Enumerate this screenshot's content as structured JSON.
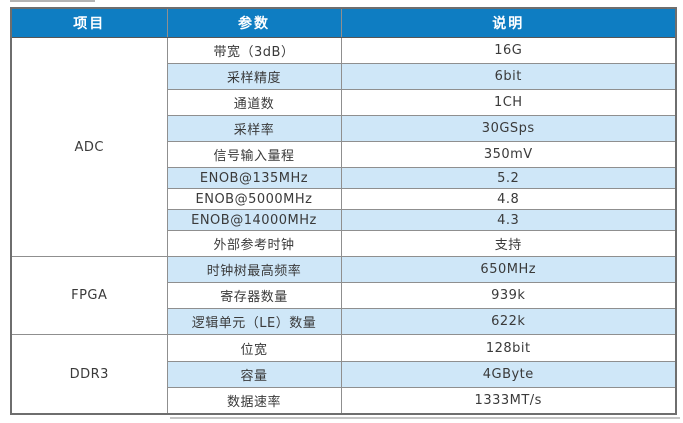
{
  "colors": {
    "header_bg": "#0e7dc2",
    "header_text": "#ffffff",
    "row_alt_bg": "#cfe7f8",
    "row_bg": "#ffffff",
    "border_gray": "#8f8f8f",
    "outer_border": "#6e6e6e",
    "body_text": "#3a3a3a"
  },
  "table": {
    "columns": [
      "项目",
      "参数",
      "说明"
    ],
    "sections": [
      {
        "item": "ADC",
        "rows": [
          {
            "param": "带宽（3dB）",
            "value": "16G"
          },
          {
            "param": "采样精度",
            "value": "6bit"
          },
          {
            "param": "通道数",
            "value": "1CH"
          },
          {
            "param": "采样率",
            "value": "30GSps"
          },
          {
            "param": "信号输入量程",
            "value": "350mV"
          },
          {
            "param": "ENOB@135MHz",
            "value": "5.2"
          },
          {
            "param": "ENOB@5000MHz",
            "value": "4.8"
          },
          {
            "param": "ENOB@14000MHz",
            "value": "4.3"
          },
          {
            "param": "外部参考时钟",
            "value": "支持"
          }
        ]
      },
      {
        "item": "FPGA",
        "rows": [
          {
            "param": "时钟树最高频率",
            "value": "650MHz"
          },
          {
            "param": "寄存器数量",
            "value": "939k"
          },
          {
            "param": "逻辑单元（LE）数量",
            "value": "622k"
          }
        ]
      },
      {
        "item": "DDR3",
        "rows": [
          {
            "param": "位宽",
            "value": "128bit"
          },
          {
            "param": "容量",
            "value": "4GByte"
          },
          {
            "param": "数据速率",
            "value": "1333MT/s"
          }
        ]
      }
    ]
  }
}
